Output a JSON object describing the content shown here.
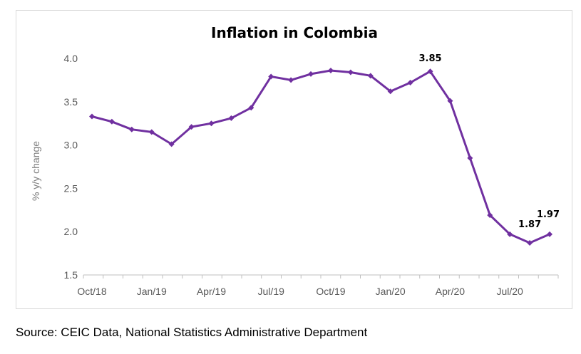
{
  "chart_data": {
    "type": "line",
    "title": "Inflation in Colombia",
    "xlabel": "",
    "ylabel": "% y/y change",
    "ylim": [
      1.5,
      4.0
    ],
    "yticks": [
      "1.5",
      "2.0",
      "2.5",
      "3.0",
      "3.5",
      "4.0"
    ],
    "x_tick_labels": [
      "Oct/18",
      "Jan/19",
      "Apr/19",
      "Jul/19",
      "Oct/19",
      "Jan/20",
      "Apr/20",
      "Jul/20"
    ],
    "grid": false,
    "legend": "none",
    "x": [
      "Oct/18",
      "Nov/18",
      "Dec/18",
      "Jan/19",
      "Feb/19",
      "Mar/19",
      "Apr/19",
      "May/19",
      "Jun/19",
      "Jul/19",
      "Aug/19",
      "Sep/19",
      "Oct/19",
      "Nov/19",
      "Dec/19",
      "Jan/20",
      "Feb/20",
      "Mar/20",
      "Apr/20",
      "May/20",
      "Jun/20",
      "Jul/20",
      "Aug/20",
      "Sep/20"
    ],
    "series": [
      {
        "color": "#7030a0",
        "values": [
          3.33,
          3.27,
          3.18,
          3.15,
          3.01,
          3.21,
          3.25,
          3.31,
          3.43,
          3.79,
          3.75,
          3.82,
          3.86,
          3.84,
          3.8,
          3.62,
          3.72,
          3.85,
          3.51,
          2.85,
          2.19,
          1.97,
          1.87,
          1.97
        ]
      }
    ],
    "data_labels": [
      {
        "index": 17,
        "text": "3.85"
      },
      {
        "index": 22,
        "text": "1.87"
      },
      {
        "index": 23,
        "text": "1.97"
      }
    ]
  },
  "source_note": "Source: CEIC Data, National Statistics Administrative Department"
}
